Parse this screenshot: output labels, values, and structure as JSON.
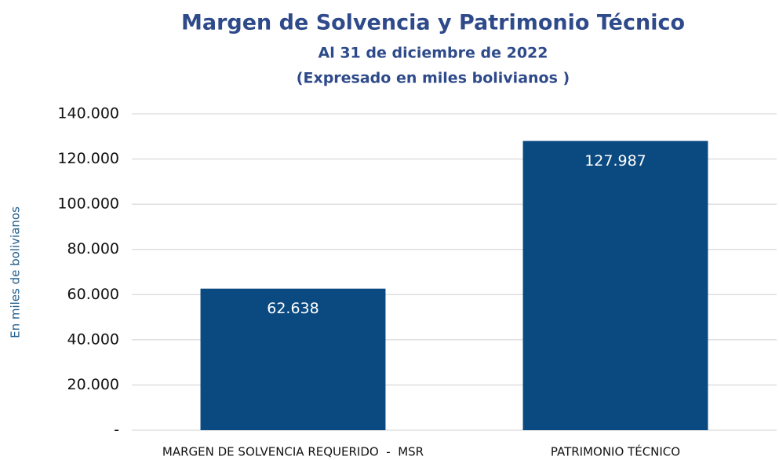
{
  "chart_data": {
    "type": "bar",
    "title": "Margen de Solvencia y Patrimonio Técnico",
    "subtitle": "Al 31 de diciembre de 2022",
    "note": "(Expresado en miles bolivianos )",
    "y_label": "En miles de bolivianos",
    "categories": [
      "MARGEN DE SOLVENCIA REQUERIDO  -  MSR",
      "PATRIMONIO TÉCNICO"
    ],
    "values": [
      62638,
      127987
    ],
    "value_labels": [
      "62.638",
      "127.987"
    ],
    "color": "#0b4a80",
    "ylim": [
      0,
      140000
    ],
    "yticks": [
      {
        "value": 0,
        "label": "-"
      },
      {
        "value": 20000,
        "label": "20.000"
      },
      {
        "value": 40000,
        "label": "40.000"
      },
      {
        "value": 60000,
        "label": "60.000"
      },
      {
        "value": 80000,
        "label": "80.000"
      },
      {
        "value": 100000,
        "label": "100.000"
      },
      {
        "value": 120000,
        "label": "120.000"
      },
      {
        "value": 140000,
        "label": "140.000"
      }
    ],
    "grid": true
  }
}
